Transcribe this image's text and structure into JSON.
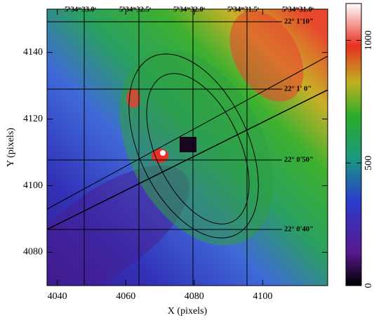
{
  "chart_data": {
    "type": "image",
    "xlabel": "X (pixels)",
    "ylabel": "Y (pixels)",
    "xlim": [
      4037,
      4119
    ],
    "xticks": [
      4040,
      4060,
      4080,
      4100
    ],
    "ylim": [
      4070,
      4153
    ],
    "yticks": [
      4080,
      4100,
      4120,
      4140
    ],
    "colorbar": {
      "lim": [
        0,
        1150
      ],
      "ticks": [
        0,
        500,
        1000
      ]
    },
    "ra_labels": [
      "5ʰ34ᵐ33.0ˢ",
      "5ʰ34ᵐ32.5ˢ",
      "5ʰ34ᵐ32.0ˢ",
      "5ʰ34ᵐ31.5ˢ",
      "5ʰ34ᵐ31.0ˢ"
    ],
    "dec_labels": [
      "22° 1'10\"",
      "22° 1' 0\"",
      "22° 0'50\"",
      "22° 0'40\""
    ]
  }
}
